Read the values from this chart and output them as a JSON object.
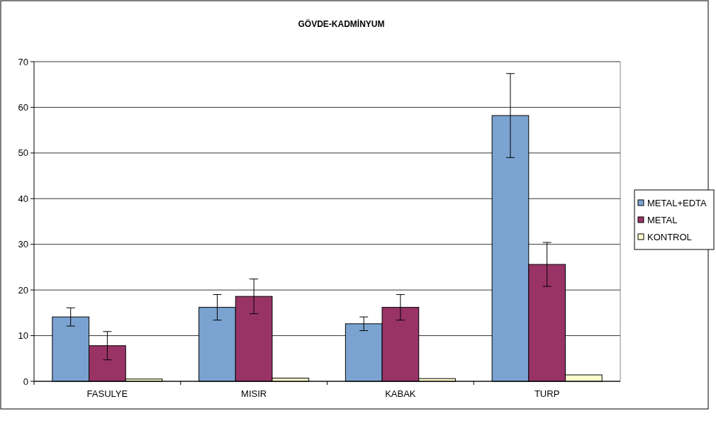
{
  "chart_data": {
    "type": "bar",
    "title": "GÖVDE-KADMİNYUM",
    "categories": [
      "FASULYE",
      "MISIR",
      "KABAK",
      "TURP"
    ],
    "series": [
      {
        "name": "METAL+EDTA",
        "color": "#7ba3d1",
        "values": [
          14.1,
          16.2,
          12.6,
          58.2
        ],
        "errors": [
          2.0,
          2.8,
          1.5,
          9.2
        ]
      },
      {
        "name": "METAL",
        "color": "#993366",
        "values": [
          7.8,
          18.6,
          16.2,
          25.6
        ],
        "errors": [
          3.1,
          3.8,
          2.8,
          4.8
        ]
      },
      {
        "name": "KONTROL",
        "color": "#ffffcc",
        "values": [
          0.5,
          0.7,
          0.6,
          1.4
        ]
      }
    ],
    "ylim": [
      0,
      70
    ],
    "yticks": [
      0,
      10,
      20,
      30,
      40,
      50,
      60,
      70
    ],
    "grid": "y",
    "legend": "right"
  }
}
